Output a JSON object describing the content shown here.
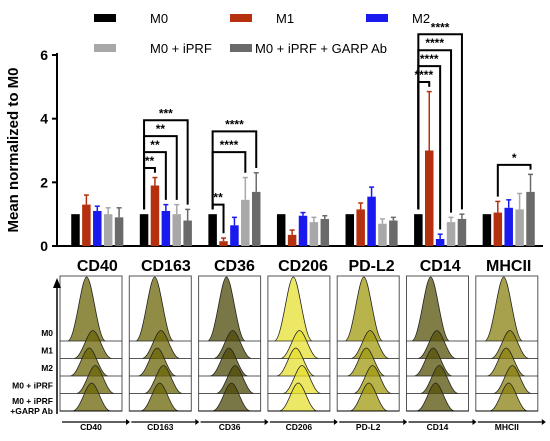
{
  "chart_data": [
    {
      "type": "bar",
      "ylabel": "Mean normalized to M0",
      "ylim": [
        0,
        6
      ],
      "yticks": [
        0,
        2,
        4,
        6
      ],
      "categories": [
        "CD40",
        "CD163",
        "CD36",
        "CD206",
        "PD-L2",
        "CD14",
        "MHCII"
      ],
      "series": [
        {
          "name": "M0",
          "color": "#000000",
          "values": [
            1,
            1,
            1,
            1,
            1,
            1,
            1
          ],
          "errors": [
            0,
            0,
            0,
            0,
            0,
            0,
            0
          ]
        },
        {
          "name": "M1",
          "color": "#b5300f",
          "values": [
            1.3,
            1.9,
            0.15,
            0.35,
            1.15,
            3.0,
            1.05
          ],
          "errors": [
            0.3,
            0.25,
            0.1,
            0.15,
            0.2,
            1.85,
            0.35
          ]
        },
        {
          "name": "M2",
          "color": "#1a1aee",
          "values": [
            1.1,
            1.1,
            0.65,
            0.95,
            1.55,
            0.22,
            1.2
          ],
          "errors": [
            0.15,
            0.2,
            0.25,
            0.1,
            0.3,
            0.15,
            0.25
          ]
        },
        {
          "name": "M0 + iPRF",
          "color": "#a8a8a8",
          "values": [
            1.0,
            1.0,
            1.45,
            0.75,
            0.7,
            0.75,
            1.15
          ],
          "errors": [
            0.2,
            0.3,
            0.7,
            0.15,
            0.15,
            0.15,
            0.5
          ]
        },
        {
          "name": "M0 + iPRF + GARP Ab",
          "color": "#6a6a6a",
          "values": [
            0.9,
            0.8,
            1.7,
            0.85,
            0.8,
            0.85,
            1.7
          ],
          "errors": [
            0.3,
            0.35,
            0.6,
            0.1,
            0.1,
            0.15,
            0.55
          ]
        }
      ],
      "significance": [
        {
          "category": "CD163",
          "label": "**",
          "from": "M0",
          "to": "M1"
        },
        {
          "category": "CD163",
          "label": "**",
          "from": "M0",
          "to": "M2"
        },
        {
          "category": "CD163",
          "label": "**",
          "from": "M0",
          "to": "M0 + iPRF"
        },
        {
          "category": "CD163",
          "label": "***",
          "from": "M0",
          "to": "M0 + iPRF + GARP Ab"
        },
        {
          "category": "CD36",
          "label": "**",
          "from": "M0",
          "to": "M1"
        },
        {
          "category": "CD36",
          "label": "****",
          "from": "M0",
          "to": "M0 + iPRF"
        },
        {
          "category": "CD36",
          "label": "****",
          "from": "M0",
          "to": "M0 + iPRF + GARP Ab"
        },
        {
          "category": "CD14",
          "label": "****",
          "from": "M0",
          "to": "M1"
        },
        {
          "category": "CD14",
          "label": "****",
          "from": "M0",
          "to": "M2"
        },
        {
          "category": "CD14",
          "label": "****",
          "from": "M0",
          "to": "M0 + iPRF"
        },
        {
          "category": "CD14",
          "label": "****",
          "from": "M0",
          "to": "M0 + iPRF + GARP Ab"
        },
        {
          "category": "MHCII",
          "label": "*",
          "from": "M1",
          "to": "M0 + iPRF + GARP Ab"
        }
      ]
    },
    {
      "type": "histogram",
      "panels": [
        {
          "marker": "CD40",
          "color": "#6b6608"
        },
        {
          "marker": "CD163",
          "color": "#6b6608"
        },
        {
          "marker": "CD36",
          "color": "#4e4a08"
        },
        {
          "marker": "CD206",
          "color": "#e6df30"
        },
        {
          "marker": "PD-L2",
          "color": "#a29a10"
        },
        {
          "marker": "CD14",
          "color": "#575208"
        },
        {
          "marker": "MHCII",
          "color": "#8a8010"
        }
      ],
      "row_labels": [
        "M0",
        "M1",
        "M2",
        "M0 + iPRF",
        "M0 + iPRF\n+GARP Ab"
      ]
    }
  ]
}
